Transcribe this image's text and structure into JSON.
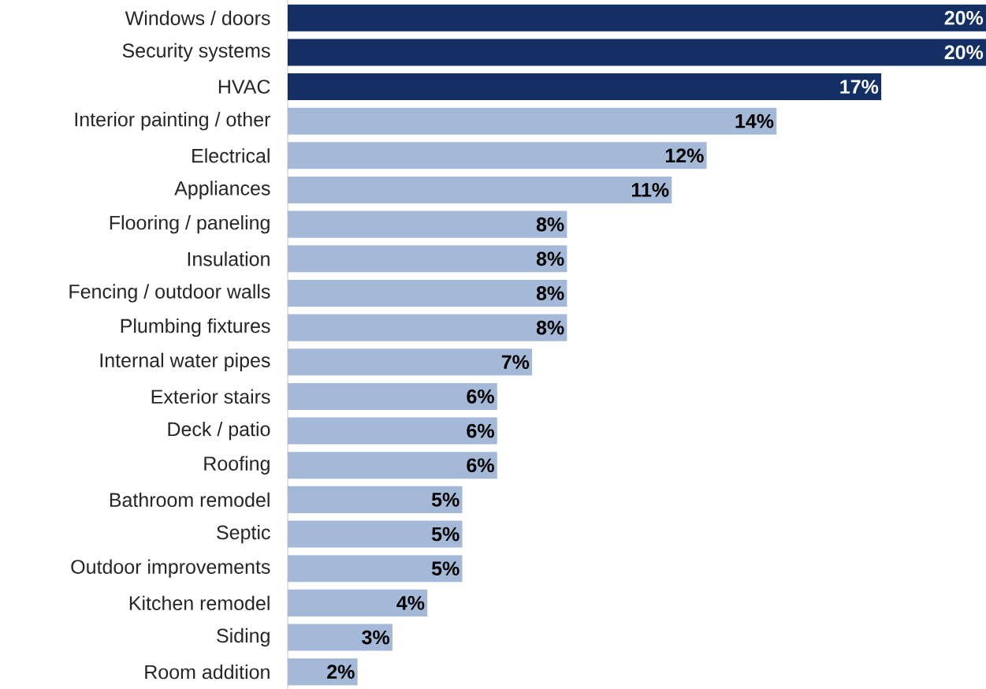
{
  "chart_data": {
    "type": "bar",
    "orientation": "horizontal",
    "categories": [
      "Windows / doors",
      "Security systems",
      "HVAC",
      "Interior painting / other",
      "Electrical",
      "Appliances",
      "Flooring / paneling",
      "Insulation",
      "Fencing / outdoor walls",
      "Plumbing fixtures",
      "Internal water pipes",
      "Exterior stairs",
      "Deck / patio",
      "Roofing",
      "Bathroom remodel",
      "Septic",
      "Outdoor improvements",
      "Kitchen remodel",
      "Siding",
      "Room addition"
    ],
    "values": [
      20,
      20,
      17,
      14,
      12,
      11,
      8,
      8,
      8,
      8,
      7,
      6,
      6,
      6,
      5,
      5,
      5,
      4,
      3,
      2
    ],
    "value_labels": [
      "20%",
      "20%",
      "17%",
      "14%",
      "12%",
      "11%",
      "8%",
      "8%",
      "8%",
      "8%",
      "7%",
      "6%",
      "6%",
      "6%",
      "5%",
      "5%",
      "5%",
      "4%",
      "3%",
      "2%"
    ],
    "colors": [
      "#132f63",
      "#132f63",
      "#132f63",
      "#a4b9d7",
      "#a4b9d7",
      "#a4b9d7",
      "#a4b9d7",
      "#a4b9d7",
      "#a4b9d7",
      "#a4b9d7",
      "#a4b9d7",
      "#a4b9d7",
      "#a4b9d7",
      "#a4b9d7",
      "#a4b9d7",
      "#a4b9d7",
      "#a4b9d7",
      "#a4b9d7",
      "#a4b9d7",
      "#a4b9d7"
    ],
    "grid": false
  }
}
